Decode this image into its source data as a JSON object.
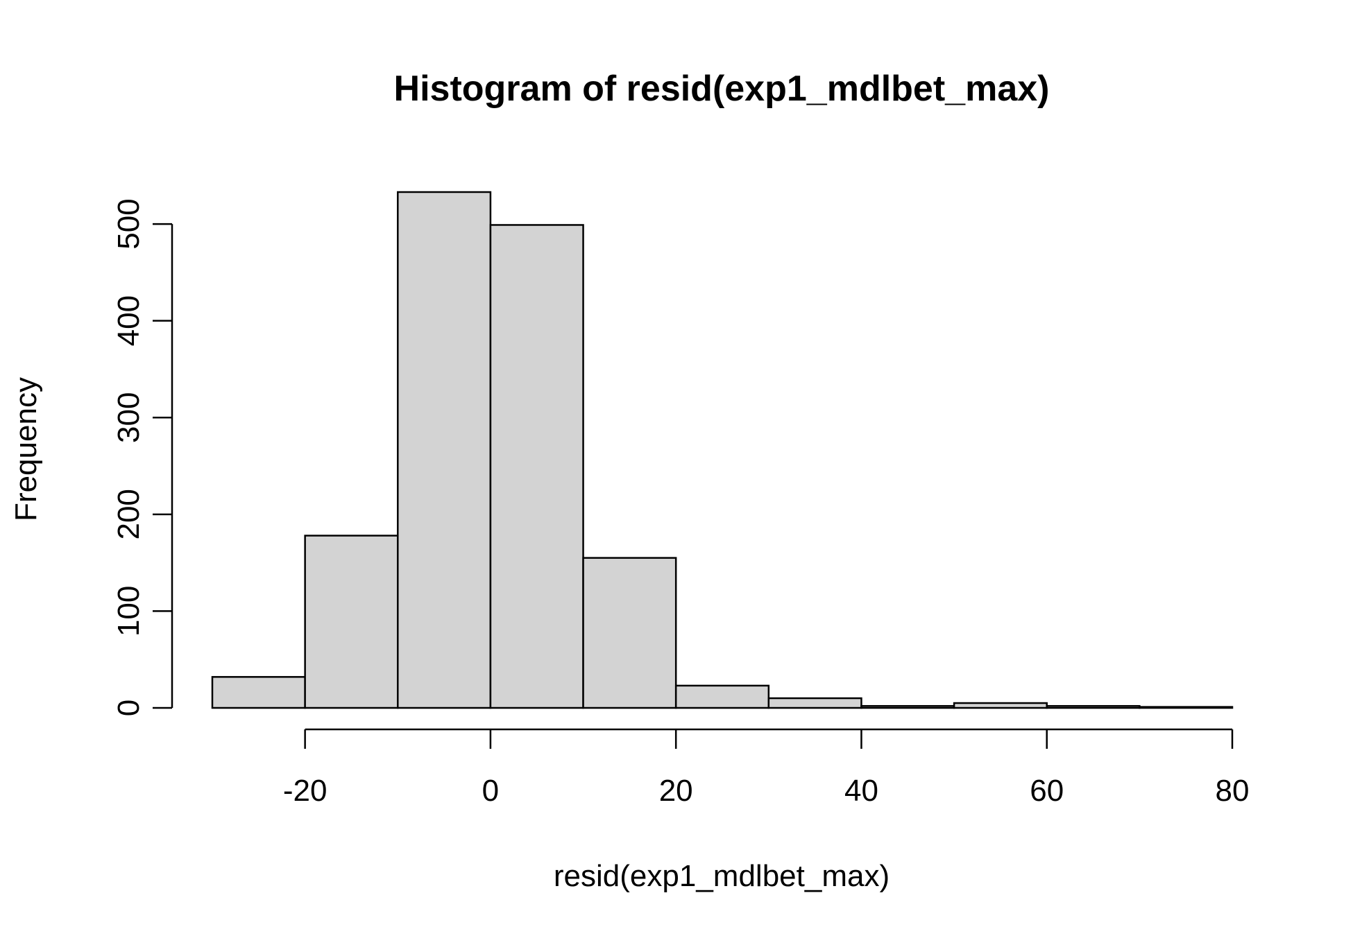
{
  "chart_data": {
    "type": "bar",
    "title": "Histogram of resid(exp1_mdlbet_max)",
    "xlabel": "resid(exp1_mdlbet_max)",
    "ylabel": "Frequency",
    "bin_edges": [
      -30,
      -20,
      -10,
      0,
      10,
      20,
      30,
      40,
      50,
      60,
      70,
      80
    ],
    "values": [
      32,
      178,
      533,
      499,
      155,
      23,
      10,
      2,
      5,
      2,
      1
    ],
    "xlim": [
      -30,
      80
    ],
    "ylim": [
      0,
      533
    ],
    "x_ticks": [
      -20,
      0,
      20,
      40,
      60,
      80
    ],
    "y_ticks": [
      0,
      100,
      200,
      300,
      400,
      500
    ],
    "bar_color": "#d3d3d3",
    "grid": false
  }
}
